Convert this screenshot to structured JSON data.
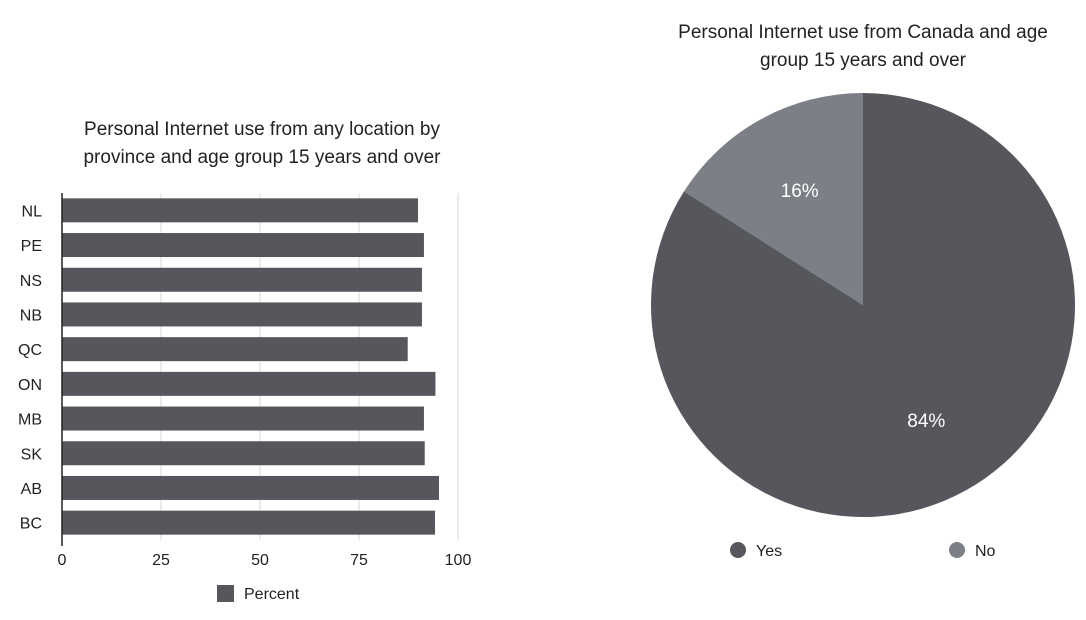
{
  "chart_data": [
    {
      "type": "bar",
      "orientation": "horizontal",
      "title_lines": [
        "Personal Internet use from any location by",
        "province and age group 15 years and over"
      ],
      "categories": [
        "NL",
        "PE",
        "NS",
        "NB",
        "QC",
        "ON",
        "MB",
        "SK",
        "AB",
        "BC"
      ],
      "series": [
        {
          "name": "Percent",
          "values": [
            89.9,
            91.4,
            90.9,
            90.9,
            87.3,
            94.3,
            91.4,
            91.6,
            95.2,
            94.2
          ]
        }
      ],
      "xlim": [
        0,
        100
      ],
      "x_ticks": [
        "0",
        "25",
        "50",
        "75",
        "100"
      ],
      "grid": true,
      "legend_position": "bottom",
      "color": "#55575c"
    },
    {
      "type": "pie",
      "title_lines": [
        "Personal Internet use from Canada and age",
        "group 15 years and over"
      ],
      "slices": [
        {
          "name": "Yes",
          "value": 84,
          "label": "84%",
          "color": "#55575c"
        },
        {
          "name": "No",
          "value": 16,
          "label": "16%",
          "color": "#7c7f86"
        }
      ],
      "start": "top",
      "direction": "clockwise",
      "legend_position": "bottom"
    }
  ]
}
